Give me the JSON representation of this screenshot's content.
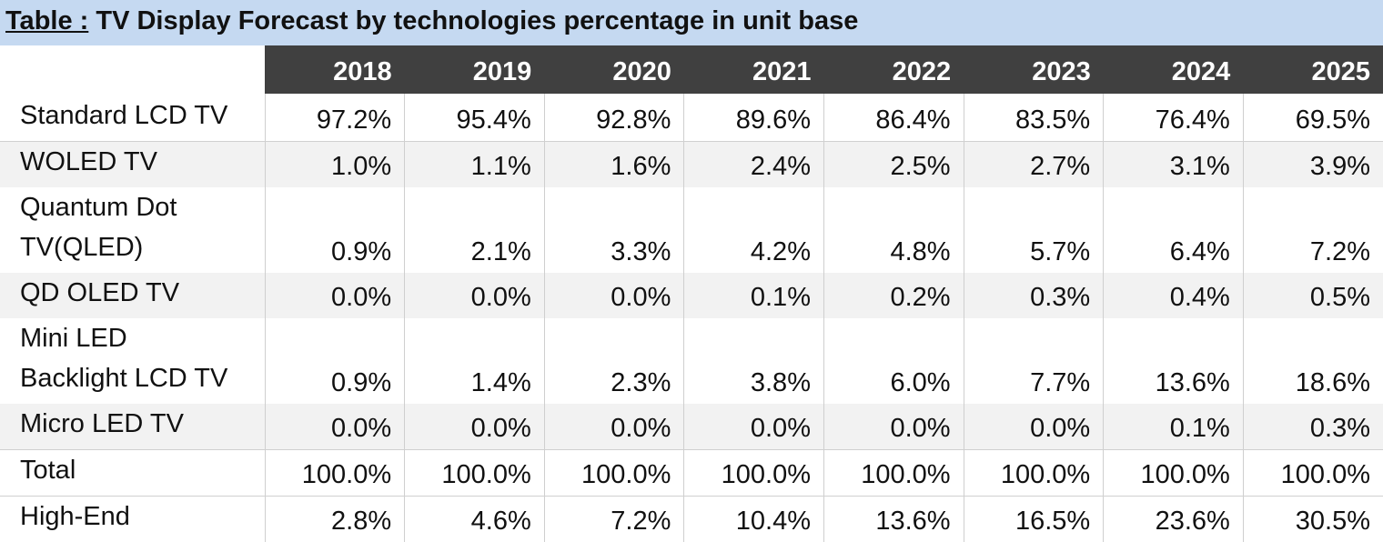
{
  "title": {
    "prefix": "Table :",
    "text": " TV Display Forecast by technologies percentage in unit base"
  },
  "columns": [
    "2018",
    "2019",
    "2020",
    "2021",
    "2022",
    "2023",
    "2024",
    "2025"
  ],
  "rows": [
    {
      "label_lines": [
        "Standard LCD TV"
      ],
      "values": [
        "97.2%",
        "95.4%",
        "92.8%",
        "89.6%",
        "86.4%",
        "83.5%",
        "76.4%",
        "69.5%"
      ]
    },
    {
      "label_lines": [
        "WOLED TV"
      ],
      "values": [
        "1.0%",
        "1.1%",
        "1.6%",
        "2.4%",
        "2.5%",
        "2.7%",
        "3.1%",
        "3.9%"
      ]
    },
    {
      "label_lines": [
        "Quantum Dot",
        "TV(QLED)"
      ],
      "values": [
        "0.9%",
        "2.1%",
        "3.3%",
        "4.2%",
        "4.8%",
        "5.7%",
        "6.4%",
        "7.2%"
      ]
    },
    {
      "label_lines": [
        "QD OLED TV"
      ],
      "values": [
        "0.0%",
        "0.0%",
        "0.0%",
        "0.1%",
        "0.2%",
        "0.3%",
        "0.4%",
        "0.5%"
      ]
    },
    {
      "label_lines": [
        "Mini LED",
        "Backlight LCD TV"
      ],
      "values": [
        "0.9%",
        "1.4%",
        "2.3%",
        "3.8%",
        "6.0%",
        "7.7%",
        "13.6%",
        "18.6%"
      ]
    },
    {
      "label_lines": [
        "Micro LED TV"
      ],
      "values": [
        "0.0%",
        "0.0%",
        "0.0%",
        "0.0%",
        "0.0%",
        "0.0%",
        "0.1%",
        "0.3%"
      ]
    },
    {
      "label_lines": [
        "Total"
      ],
      "values": [
        "100.0%",
        "100.0%",
        "100.0%",
        "100.0%",
        "100.0%",
        "100.0%",
        "100.0%",
        "100.0%"
      ]
    },
    {
      "label_lines": [
        "High-End"
      ],
      "values": [
        "2.8%",
        "4.6%",
        "7.2%",
        "10.4%",
        "13.6%",
        "16.5%",
        "23.6%",
        "30.5%"
      ]
    }
  ]
}
